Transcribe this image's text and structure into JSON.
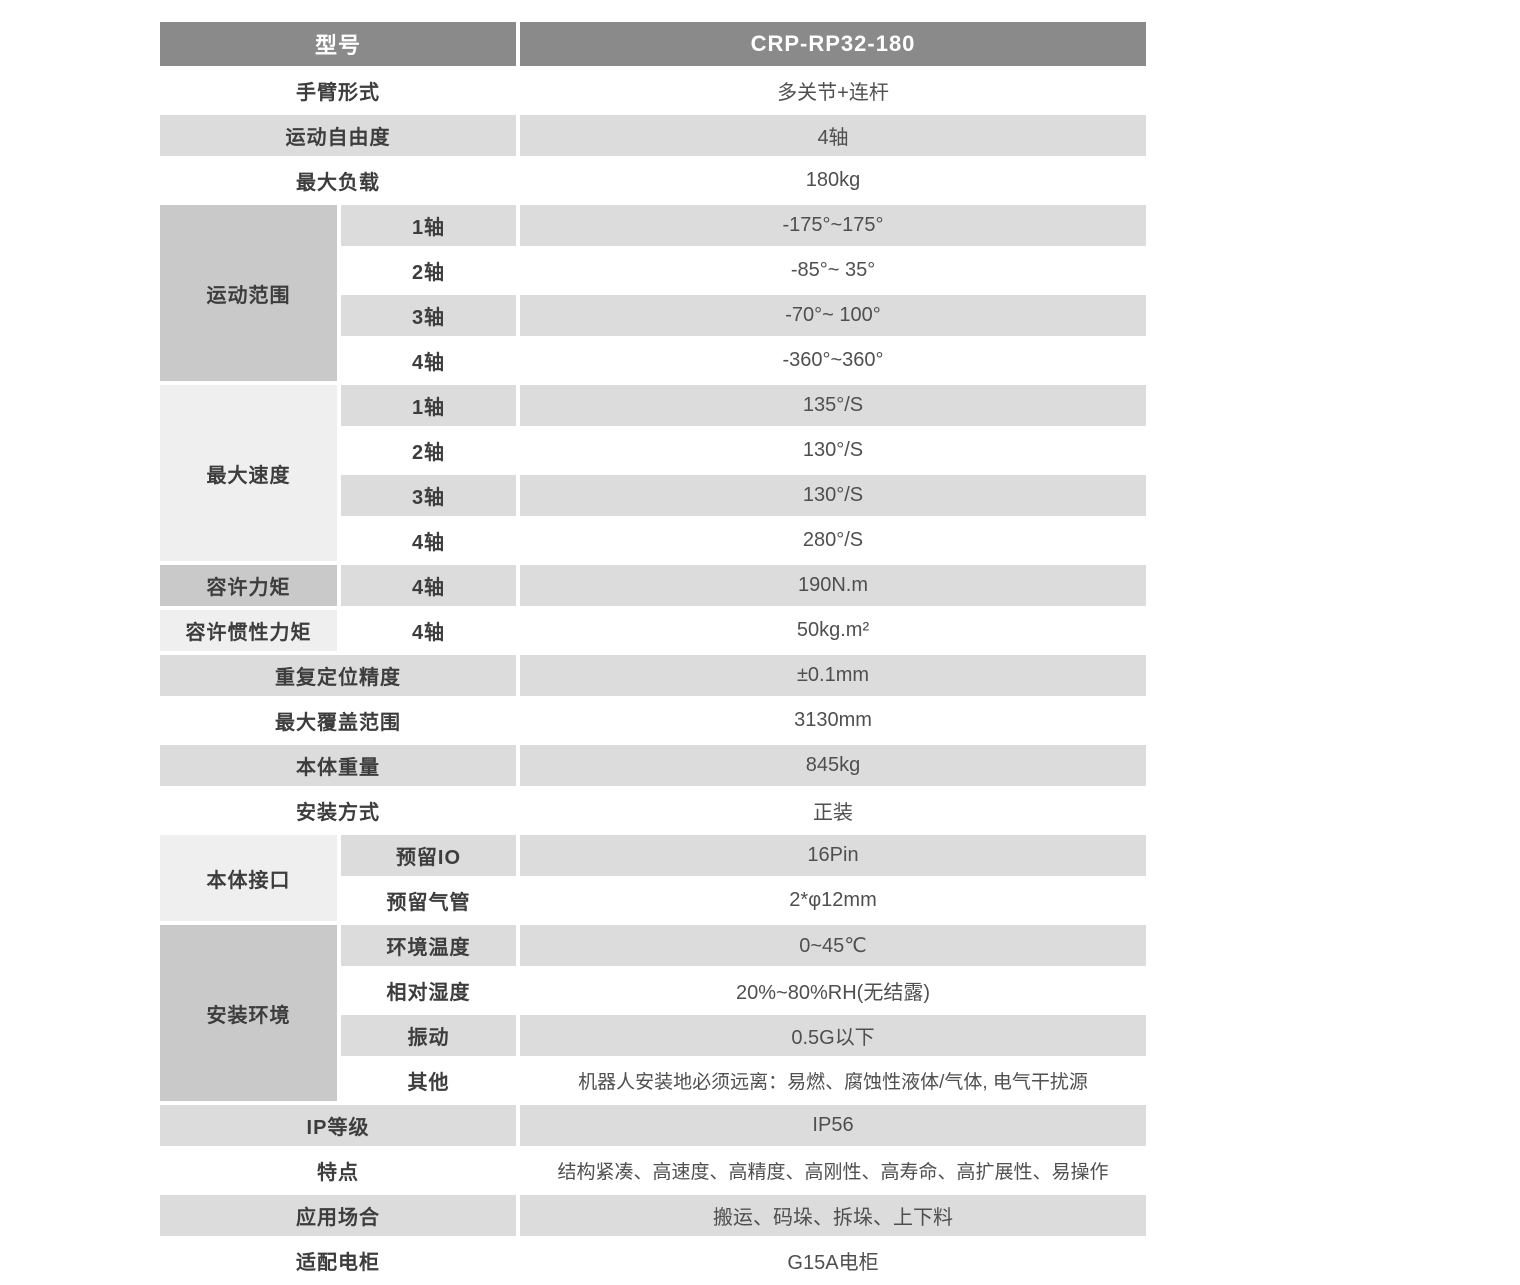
{
  "colors": {
    "header_bg": "#8a8a8a",
    "header_text": "#ffffff",
    "stripe_gray": "#dcdcdc",
    "row_white": "#ffffff",
    "group_dark": "#c9c9c9",
    "group_light": "#efefef",
    "label_text": "#3d3d3d",
    "value_text": "#4f4f4f"
  },
  "rows": [
    {
      "type": "header",
      "label": "型号",
      "value": "CRP-RP32-180"
    },
    {
      "type": "simple",
      "shade": "w",
      "label": "手臂形式",
      "value": "多关节+连杆"
    },
    {
      "type": "simple",
      "shade": "g",
      "label": "运动自由度",
      "value": "4轴"
    },
    {
      "type": "simple",
      "shade": "w",
      "label": "最大负载",
      "value": "180kg"
    },
    {
      "type": "sub",
      "shade": "g",
      "group": {
        "label": "运动范围",
        "span": 4,
        "tone": "dark"
      },
      "sub": "1轴",
      "value": "-175°~175°"
    },
    {
      "type": "sub",
      "shade": "w",
      "sub": "2轴",
      "value": "-85°~ 35°"
    },
    {
      "type": "sub",
      "shade": "g",
      "sub": "3轴",
      "value": "-70°~ 100°"
    },
    {
      "type": "sub",
      "shade": "w",
      "sub": "4轴",
      "value": "-360°~360°"
    },
    {
      "type": "sub",
      "shade": "g",
      "group": {
        "label": "最大速度",
        "span": 4,
        "tone": "light"
      },
      "sub": "1轴",
      "value": "135°/S"
    },
    {
      "type": "sub",
      "shade": "w",
      "sub": "2轴",
      "value": "130°/S"
    },
    {
      "type": "sub",
      "shade": "g",
      "sub": "3轴",
      "value": "130°/S"
    },
    {
      "type": "sub",
      "shade": "w",
      "sub": "4轴",
      "value": "280°/S"
    },
    {
      "type": "sub",
      "shade": "g",
      "group": {
        "label": "容许力矩",
        "span": 1,
        "tone": "dark"
      },
      "sub": "4轴",
      "value": "190N.m"
    },
    {
      "type": "sub",
      "shade": "w",
      "group": {
        "label": "容许惯性力矩",
        "span": 1,
        "tone": "light"
      },
      "sub": "4轴",
      "value": "50kg.m²"
    },
    {
      "type": "simple",
      "shade": "g",
      "label": "重复定位精度",
      "value": "±0.1mm"
    },
    {
      "type": "simple",
      "shade": "w",
      "label": "最大覆盖范围",
      "value": "3130mm"
    },
    {
      "type": "simple",
      "shade": "g",
      "label": "本体重量",
      "value": "845kg"
    },
    {
      "type": "simple",
      "shade": "w",
      "label": "安装方式",
      "value": "正装"
    },
    {
      "type": "sub",
      "shade": "g",
      "group": {
        "label": "本体接口",
        "span": 2,
        "tone": "light"
      },
      "sub": "预留IO",
      "value": "16Pin"
    },
    {
      "type": "sub",
      "shade": "w",
      "sub": "预留气管",
      "value": "2*φ12mm"
    },
    {
      "type": "sub",
      "shade": "g",
      "group": {
        "label": "安装环境",
        "span": 4,
        "tone": "dark"
      },
      "sub": "环境温度",
      "value": "0~45℃"
    },
    {
      "type": "sub",
      "shade": "w",
      "sub": "相对湿度",
      "value": "20%~80%RH(无结露)"
    },
    {
      "type": "sub",
      "shade": "g",
      "sub": "振动",
      "value": "0.5G以下"
    },
    {
      "type": "sub",
      "shade": "w",
      "sub": "其他",
      "value": "机器人安装地必须远离：易燃、腐蚀性液体/气体, 电气干扰源",
      "long": true
    },
    {
      "type": "simple",
      "shade": "g",
      "label": "IP等级",
      "value": "IP56"
    },
    {
      "type": "simple",
      "shade": "w",
      "label": "特点",
      "value": "结构紧凑、高速度、高精度、高刚性、高寿命、高扩展性、易操作",
      "long": true
    },
    {
      "type": "simple",
      "shade": "g",
      "label": "应用场合",
      "value": "搬运、码垛、拆垛、上下料"
    },
    {
      "type": "simple",
      "shade": "w",
      "label": "适配电柜",
      "value": "G15A电柜"
    }
  ]
}
